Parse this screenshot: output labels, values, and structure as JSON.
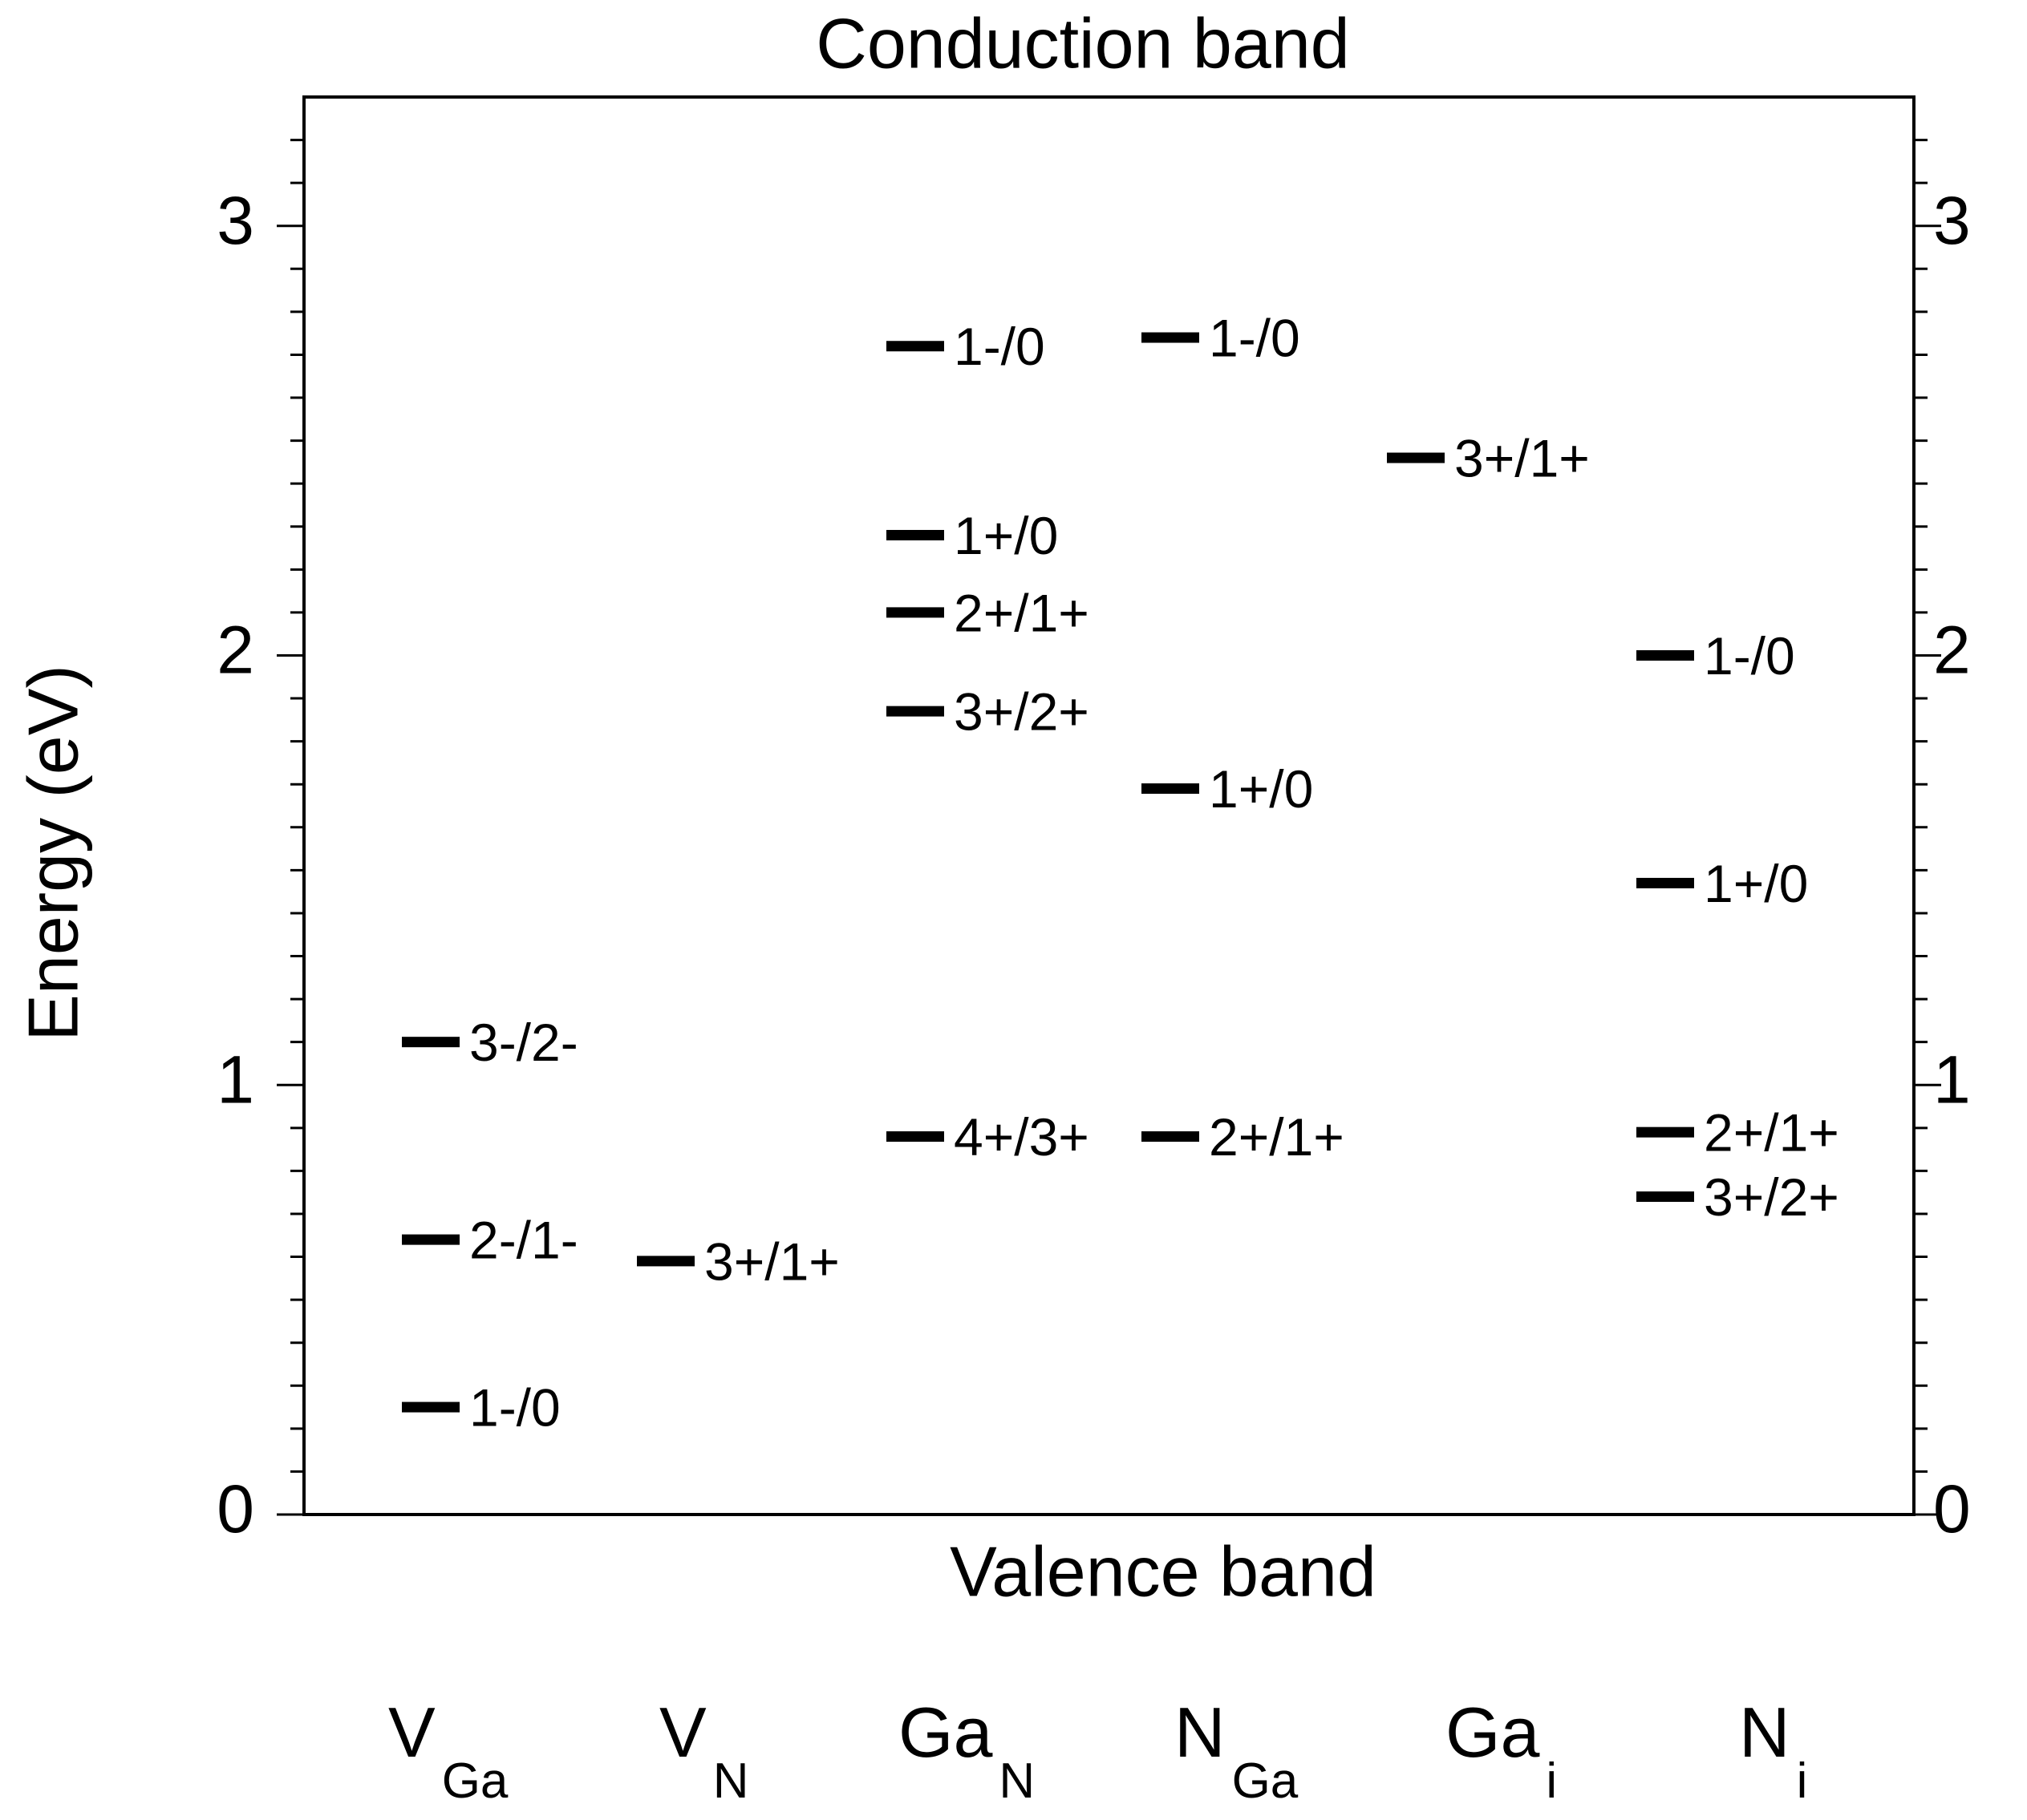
{
  "chart_data": {
    "type": "level",
    "title": "Conduction band",
    "xlabel": "Valence band",
    "ylabel": "Energy (eV)",
    "ylim": [
      0,
      3.3
    ],
    "yticks": [
      0,
      1,
      2,
      3
    ],
    "minor_yticks": [
      0.1,
      0.2,
      0.3,
      0.4,
      0.5,
      0.6,
      0.7,
      0.8,
      0.9,
      1.1,
      1.2,
      1.3,
      1.4,
      1.5,
      1.6,
      1.7,
      1.8,
      1.9,
      2.1,
      2.2,
      2.3,
      2.4,
      2.5,
      2.6,
      2.7,
      2.8,
      2.9,
      3.1,
      3.2
    ],
    "y2lim": [
      0,
      3.3
    ],
    "y2ticks": [
      0,
      1,
      2,
      3
    ],
    "color": "#000000",
    "groups": [
      {
        "label": {
          "base": "V",
          "sub": "Ga"
        },
        "values": [
          1.1,
          0.64,
          0.25
        ],
        "value_labels": [
          "3-/2-",
          "2-/1-",
          "1-/0"
        ]
      },
      {
        "label": {
          "base": "V",
          "sub": "N"
        },
        "values": [
          0.59
        ],
        "value_labels": [
          "3+/1+"
        ]
      },
      {
        "label": {
          "base": "Ga",
          "sub": "N"
        },
        "values": [
          2.72,
          2.28,
          2.1,
          1.87,
          0.88
        ],
        "value_labels": [
          "1-/0",
          "1+/0",
          "2+/1+",
          "3+/2+",
          "4+/3+"
        ]
      },
      {
        "label": {
          "base": "N",
          "sub": "Ga"
        },
        "values": [
          2.74,
          1.69,
          0.88
        ],
        "value_labels": [
          "1-/0",
          "1+/0",
          "2+/1+"
        ]
      },
      {
        "label": {
          "base": "Ga",
          "sub": "i"
        },
        "values": [
          2.46
        ],
        "value_labels": [
          "3+/1+"
        ]
      },
      {
        "label": {
          "base": "N",
          "sub": "i"
        },
        "values": [
          2.0,
          1.47,
          0.89,
          0.74
        ],
        "value_labels": [
          "1-/0",
          "1+/0",
          "2+/1+",
          "3+/2+"
        ]
      }
    ]
  }
}
